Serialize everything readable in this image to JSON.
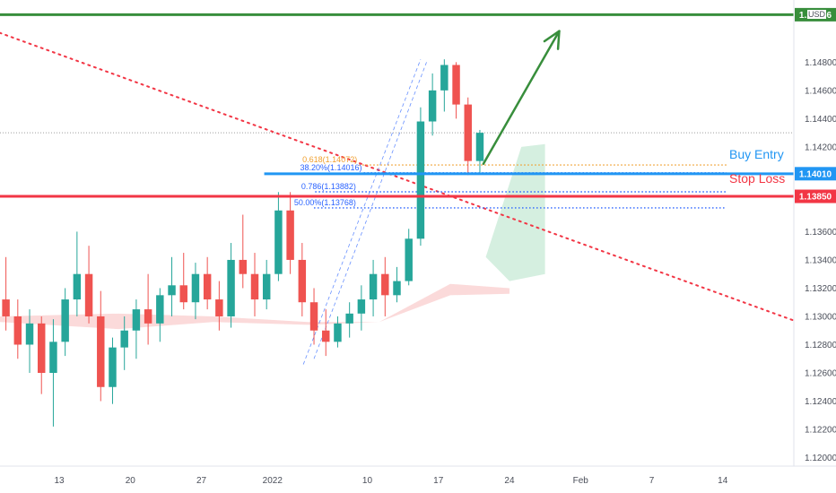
{
  "currency_label": "USD",
  "colors": {
    "up": "#26a69a",
    "down": "#ef5350",
    "target": "#388e3c",
    "entry": "#2196f3",
    "stop": "#f23645",
    "trend": "#f23645",
    "fib_orange": "#f0a030",
    "fib_blue": "#2962ff",
    "cloud_green": "#d5efe0",
    "cloud_red": "#fbdada"
  },
  "chart_data": {
    "type": "candlestick",
    "instrument_currency": "USD",
    "y_axis": {
      "ticks": [
        "1.14800",
        "1.14600",
        "1.14400",
        "1.14200",
        "1.13600",
        "1.13400",
        "1.13200",
        "1.13000",
        "1.12800",
        "1.12600",
        "1.12400",
        "1.12200",
        "1.12000"
      ],
      "tick_values": [
        1.148,
        1.146,
        1.144,
        1.142,
        1.136,
        1.134,
        1.132,
        1.13,
        1.128,
        1.126,
        1.124,
        1.122,
        1.12
      ],
      "range": [
        1.1194,
        1.1524
      ]
    },
    "x_axis": {
      "ticks": [
        "13",
        "20",
        "27",
        "2022",
        "10",
        "17",
        "24",
        "Feb",
        "7",
        "14"
      ],
      "tick_session_index": [
        9,
        15,
        21,
        27,
        35,
        41,
        47,
        53,
        59,
        65
      ],
      "session_range": [
        4,
        71
      ]
    },
    "price_labels": [
      {
        "name": "target",
        "value": "1.15136",
        "price": 1.15136
      },
      {
        "name": "buy-entry",
        "value": "1.14010",
        "price": 1.1401
      },
      {
        "name": "stop-loss",
        "value": "1.13850",
        "price": 1.1385
      }
    ],
    "annotations": {
      "buy_entry": "Buy Entry",
      "stop_loss": "Stop Loss"
    },
    "fibonacci_labels": [
      {
        "text": "0.618(1.14072)",
        "price": 1.14072,
        "color": "orange"
      },
      {
        "text": "38.20%(1.14016)",
        "price": 1.14016,
        "color": "blue"
      },
      {
        "text": "0.786(1.13882)",
        "price": 1.13882,
        "color": "blue"
      },
      {
        "text": "50.00%(1.13768)",
        "price": 1.13768,
        "color": "blue"
      }
    ],
    "current_price_line": 1.143,
    "trendline": {
      "from": {
        "session": -4,
        "price": 1.1525
      },
      "to": {
        "session": 73,
        "price": 1.1291
      }
    },
    "target_arrow": {
      "from": {
        "session": 44.8,
        "price": 1.1408
      },
      "to": {
        "session": 51.2,
        "price": 1.1502
      }
    },
    "candles": [
      [
        1.1264,
        1.133,
        1.1255,
        1.1325
      ],
      [
        1.1325,
        1.1352,
        1.1298,
        1.1305
      ],
      [
        1.1305,
        1.1338,
        1.1278,
        1.129
      ],
      [
        1.129,
        1.1322,
        1.1268,
        1.1312
      ],
      [
        1.1312,
        1.1342,
        1.129,
        1.13
      ],
      [
        1.13,
        1.1312,
        1.127,
        1.128
      ],
      [
        1.128,
        1.1305,
        1.126,
        1.1295
      ],
      [
        1.1295,
        1.13,
        1.1245,
        1.126
      ],
      [
        1.126,
        1.1298,
        1.1222,
        1.1282
      ],
      [
        1.1282,
        1.132,
        1.1272,
        1.1312
      ],
      [
        1.1312,
        1.136,
        1.13,
        1.133
      ],
      [
        1.133,
        1.135,
        1.1295,
        1.13
      ],
      [
        1.13,
        1.1318,
        1.124,
        1.125
      ],
      [
        1.125,
        1.1285,
        1.1238,
        1.1278
      ],
      [
        1.1278,
        1.13,
        1.1262,
        1.129
      ],
      [
        1.129,
        1.1312,
        1.127,
        1.1305
      ],
      [
        1.1305,
        1.133,
        1.128,
        1.1295
      ],
      [
        1.1295,
        1.132,
        1.1282,
        1.1315
      ],
      [
        1.1315,
        1.1342,
        1.13,
        1.1322
      ],
      [
        1.1322,
        1.1345,
        1.1305,
        1.131
      ],
      [
        1.131,
        1.1338,
        1.1298,
        1.133
      ],
      [
        1.133,
        1.1342,
        1.1305,
        1.1312
      ],
      [
        1.1312,
        1.1325,
        1.129,
        1.13
      ],
      [
        1.13,
        1.1352,
        1.1292,
        1.134
      ],
      [
        1.134,
        1.1372,
        1.132,
        1.133
      ],
      [
        1.133,
        1.1345,
        1.13,
        1.1312
      ],
      [
        1.1312,
        1.134,
        1.1305,
        1.133
      ],
      [
        1.133,
        1.1388,
        1.1325,
        1.1375
      ],
      [
        1.1375,
        1.1388,
        1.133,
        1.134
      ],
      [
        1.134,
        1.1352,
        1.13,
        1.131
      ],
      [
        1.131,
        1.132,
        1.128,
        1.129
      ],
      [
        1.129,
        1.1305,
        1.1272,
        1.1282
      ],
      [
        1.1282,
        1.13,
        1.1278,
        1.1295
      ],
      [
        1.1295,
        1.131,
        1.1285,
        1.1302
      ],
      [
        1.1302,
        1.1322,
        1.129,
        1.1312
      ],
      [
        1.1312,
        1.134,
        1.13,
        1.133
      ],
      [
        1.133,
        1.1342,
        1.13,
        1.1315
      ],
      [
        1.1315,
        1.1335,
        1.131,
        1.1325
      ],
      [
        1.1325,
        1.1362,
        1.1322,
        1.1355
      ],
      [
        1.1355,
        1.1448,
        1.135,
        1.1438
      ],
      [
        1.1438,
        1.1472,
        1.1428,
        1.146
      ],
      [
        1.146,
        1.1482,
        1.1445,
        1.1478
      ],
      [
        1.1478,
        1.148,
        1.144,
        1.145
      ],
      [
        1.145,
        1.1455,
        1.14,
        1.141
      ],
      [
        1.141,
        1.1432,
        1.1402,
        1.143
      ]
    ]
  }
}
